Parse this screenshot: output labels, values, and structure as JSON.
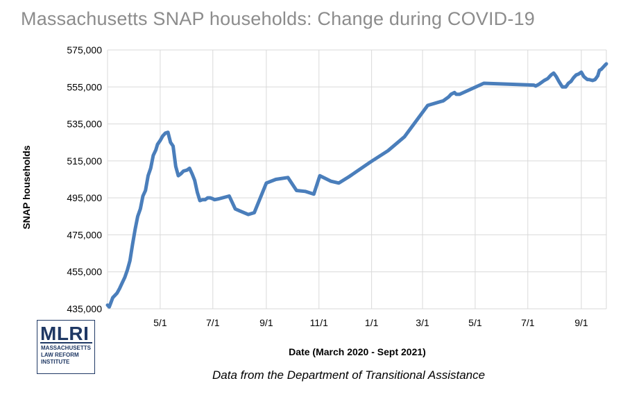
{
  "logo": {
    "mark": "MLRI",
    "sub": "MASSACHUSETTS\nLAW REFORM\nINSTITUTE"
  },
  "source_note": "Data from the Department of Transitional Assistance",
  "colors": {
    "line": "#4a7ebb",
    "grid": "#d9d9d9",
    "title": "#8c8c8c",
    "logo": "#1f3864"
  },
  "chart_data": {
    "type": "line",
    "title": "Massachusetts SNAP households: Change during COVID-19",
    "xlabel": "Date (March 2020 - Sept 2021)",
    "ylabel": "SNAP households",
    "ylim": [
      435000,
      575000
    ],
    "y_ticks": [
      435000,
      455000,
      475000,
      495000,
      515000,
      535000,
      555000,
      575000
    ],
    "y_tick_labels": [
      "435,000",
      "455,000",
      "475,000",
      "495,000",
      "515,000",
      "535,000",
      "555,000",
      "575,000"
    ],
    "xlim": [
      "2020-03-01",
      "2021-09-30"
    ],
    "x_ticks": [
      "2020-05-01",
      "2020-07-01",
      "2020-09-01",
      "2020-11-01",
      "2021-01-01",
      "2021-03-01",
      "2021-05-01",
      "2021-07-01",
      "2021-09-01"
    ],
    "x_tick_labels": [
      "5/1",
      "7/1",
      "9/1",
      "11/1",
      "1/1",
      "3/1",
      "5/1",
      "7/1",
      "9/1"
    ],
    "grid": true,
    "series": [
      {
        "x": [
          "2020-03-01",
          "2020-03-03",
          "2020-03-05",
          "2020-03-07",
          "2020-03-09",
          "2020-03-12",
          "2020-03-15",
          "2020-03-18",
          "2020-03-21",
          "2020-03-24",
          "2020-03-27",
          "2020-03-30",
          "2020-04-02",
          "2020-04-05",
          "2020-04-08",
          "2020-04-11",
          "2020-04-14",
          "2020-04-17",
          "2020-04-20",
          "2020-04-23",
          "2020-04-26",
          "2020-04-28",
          "2020-05-01",
          "2020-05-04",
          "2020-05-07",
          "2020-05-10",
          "2020-05-13",
          "2020-05-16",
          "2020-05-19",
          "2020-05-22",
          "2020-05-25",
          "2020-05-28",
          "2020-06-01",
          "2020-06-04",
          "2020-06-07",
          "2020-06-10",
          "2020-06-13",
          "2020-06-16",
          "2020-06-19",
          "2020-06-22",
          "2020-06-25",
          "2020-06-28",
          "2020-07-01",
          "2020-07-03",
          "2020-07-08",
          "2020-07-20",
          "2020-07-27",
          "2020-08-01",
          "2020-08-11",
          "2020-08-18",
          "2020-09-01",
          "2020-09-12",
          "2020-09-26",
          "2020-10-06",
          "2020-10-16",
          "2020-10-26",
          "2020-11-02",
          "2020-11-15",
          "2020-11-24",
          "2020-12-06",
          "2020-12-31",
          "2021-01-20",
          "2021-02-08",
          "2021-03-07",
          "2021-03-25",
          "2021-03-31",
          "2021-04-03",
          "2021-04-07",
          "2021-04-09",
          "2021-04-13",
          "2021-05-11",
          "2021-07-08",
          "2021-07-10",
          "2021-07-14",
          "2021-07-20",
          "2021-07-24",
          "2021-07-28",
          "2021-07-31",
          "2021-08-03",
          "2021-08-06",
          "2021-08-10",
          "2021-08-14",
          "2021-08-17",
          "2021-08-20",
          "2021-08-23",
          "2021-08-26",
          "2021-08-29",
          "2021-09-01",
          "2021-09-04",
          "2021-09-08",
          "2021-09-10",
          "2021-09-14",
          "2021-09-17",
          "2021-09-20",
          "2021-09-22",
          "2021-09-24",
          "2021-09-26",
          "2021-09-28",
          "2021-09-30"
        ],
        "values": [
          437000,
          436000,
          438500,
          441000,
          442000,
          443500,
          446000,
          449000,
          452000,
          456000,
          461000,
          470000,
          478000,
          485000,
          489000,
          496000,
          499000,
          507000,
          511000,
          518000,
          521000,
          524000,
          526000,
          528500,
          530000,
          530500,
          525000,
          523000,
          512000,
          507000,
          508000,
          509500,
          510000,
          511000,
          508000,
          504500,
          498000,
          493500,
          494000,
          494000,
          495000,
          495000,
          494500,
          494000,
          494500,
          496000,
          489000,
          488000,
          486000,
          487000,
          503000,
          505000,
          506000,
          499000,
          498500,
          497000,
          507000,
          504000,
          503000,
          506500,
          514500,
          520500,
          528000,
          545000,
          547500,
          549500,
          551000,
          552000,
          551000,
          551000,
          557000,
          556000,
          555500,
          556500,
          558500,
          559500,
          561500,
          562500,
          560500,
          558000,
          555000,
          555000,
          557000,
          558000,
          560000,
          561500,
          562000,
          563000,
          560500,
          559000,
          559000,
          558500,
          559000,
          561000,
          564000,
          564500,
          565500,
          566500,
          567500
        ]
      }
    ]
  }
}
